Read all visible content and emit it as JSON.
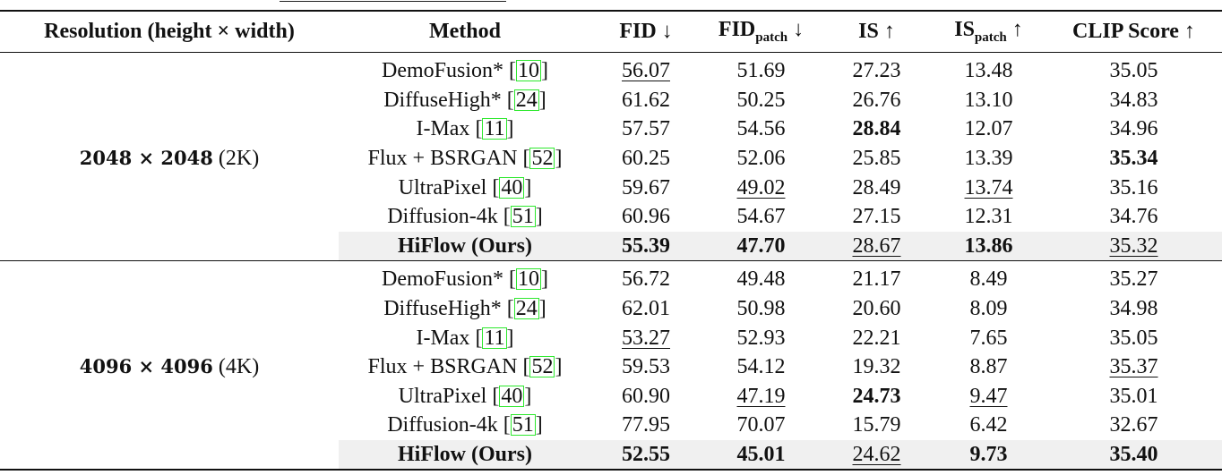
{
  "headers": {
    "resolution": "Resolution (height × width)",
    "method": "Method",
    "fid": "FID ↓",
    "fid_patch_base": "FID",
    "fid_patch_sub": "patch",
    "fid_patch_arrow": " ↓",
    "is": "IS ↑",
    "is_patch_base": "IS",
    "is_patch_sub": "patch",
    "is_patch_arrow": " ↑",
    "clip": "CLIP Score ↑"
  },
  "groups": [
    {
      "res_bold": "2048 × 2048",
      "res_suffix": " (2K)",
      "rows": [
        {
          "name": "DemoFusion*",
          "ref": "10",
          "cells": [
            {
              "v": "56.07",
              "s": "u"
            },
            {
              "v": "51.69"
            },
            {
              "v": "27.23"
            },
            {
              "v": "13.48"
            },
            {
              "v": "35.05"
            }
          ]
        },
        {
          "name": "DiffuseHigh*",
          "ref": "24",
          "cells": [
            {
              "v": "61.62"
            },
            {
              "v": "50.25"
            },
            {
              "v": "26.76"
            },
            {
              "v": "13.10"
            },
            {
              "v": "34.83"
            }
          ]
        },
        {
          "name": "I-Max",
          "ref": "11",
          "cells": [
            {
              "v": "57.57"
            },
            {
              "v": "54.56"
            },
            {
              "v": "28.84",
              "s": "b"
            },
            {
              "v": "12.07"
            },
            {
              "v": "34.96"
            }
          ]
        },
        {
          "name": "Flux + BSRGAN",
          "ref": "52",
          "cells": [
            {
              "v": "60.25"
            },
            {
              "v": "52.06"
            },
            {
              "v": "25.85"
            },
            {
              "v": "13.39"
            },
            {
              "v": "35.34",
              "s": "b"
            }
          ]
        },
        {
          "name": "UltraPixel",
          "ref": "40",
          "cells": [
            {
              "v": "59.67"
            },
            {
              "v": "49.02",
              "s": "u"
            },
            {
              "v": "28.49"
            },
            {
              "v": "13.74",
              "s": "u"
            },
            {
              "v": "35.16"
            }
          ]
        },
        {
          "name": "Diffusion-4k",
          "ref": "51",
          "cells": [
            {
              "v": "60.96"
            },
            {
              "v": "54.67"
            },
            {
              "v": "27.15"
            },
            {
              "v": "12.31"
            },
            {
              "v": "34.76"
            }
          ]
        },
        {
          "name": "HiFlow (Ours)",
          "ours": true,
          "cells": [
            {
              "v": "55.39",
              "s": "b"
            },
            {
              "v": "47.70",
              "s": "b"
            },
            {
              "v": "28.67",
              "s": "u"
            },
            {
              "v": "13.86",
              "s": "b"
            },
            {
              "v": "35.32",
              "s": "u"
            }
          ]
        }
      ]
    },
    {
      "res_bold": "4096 × 4096",
      "res_suffix": " (4K)",
      "rows": [
        {
          "name": "DemoFusion*",
          "ref": "10",
          "cells": [
            {
              "v": "56.72"
            },
            {
              "v": "49.48"
            },
            {
              "v": "21.17"
            },
            {
              "v": "8.49"
            },
            {
              "v": "35.27"
            }
          ]
        },
        {
          "name": "DiffuseHigh*",
          "ref": "24",
          "cells": [
            {
              "v": "62.01"
            },
            {
              "v": "50.98"
            },
            {
              "v": "20.60"
            },
            {
              "v": "8.09"
            },
            {
              "v": "34.98"
            }
          ]
        },
        {
          "name": "I-Max",
          "ref": "11",
          "cells": [
            {
              "v": "53.27",
              "s": "u"
            },
            {
              "v": "52.93"
            },
            {
              "v": "22.21"
            },
            {
              "v": "7.65"
            },
            {
              "v": "35.05"
            }
          ]
        },
        {
          "name": "Flux + BSRGAN",
          "ref": "52",
          "cells": [
            {
              "v": "59.53"
            },
            {
              "v": "54.12"
            },
            {
              "v": "19.32"
            },
            {
              "v": "8.87"
            },
            {
              "v": "35.37",
              "s": "u"
            }
          ]
        },
        {
          "name": "UltraPixel",
          "ref": "40",
          "cells": [
            {
              "v": "60.90"
            },
            {
              "v": "47.19",
              "s": "u"
            },
            {
              "v": "24.73",
              "s": "b"
            },
            {
              "v": "9.47",
              "s": "u"
            },
            {
              "v": "35.01"
            }
          ]
        },
        {
          "name": "Diffusion-4k",
          "ref": "51",
          "cells": [
            {
              "v": "77.95"
            },
            {
              "v": "70.07"
            },
            {
              "v": "15.79"
            },
            {
              "v": "6.42"
            },
            {
              "v": "32.67"
            }
          ]
        },
        {
          "name": "HiFlow (Ours)",
          "ours": true,
          "cells": [
            {
              "v": "52.55",
              "s": "b"
            },
            {
              "v": "45.01",
              "s": "b"
            },
            {
              "v": "24.62",
              "s": "u"
            },
            {
              "v": "9.73",
              "s": "b"
            },
            {
              "v": "35.40",
              "s": "b"
            }
          ]
        }
      ]
    }
  ]
}
